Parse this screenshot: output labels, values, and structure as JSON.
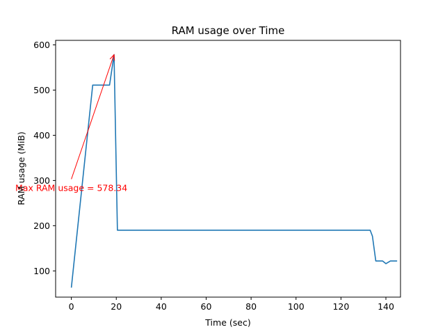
{
  "chart_data": {
    "type": "line",
    "title": "RAM usage over Time",
    "xlabel": "Time (sec)",
    "ylabel": "RAM usage (MiB)",
    "xlim": [
      -7,
      146.5
    ],
    "ylim": [
      42,
      610
    ],
    "xticks": [
      0,
      20,
      40,
      60,
      80,
      100,
      120,
      140
    ],
    "yticks": [
      100,
      200,
      300,
      400,
      500,
      600
    ],
    "grid": false,
    "series": [
      {
        "color": "#1f77b4",
        "x": [
          0,
          9.5,
          17,
          19,
          20.5,
          133,
          134,
          135.5,
          138.5,
          140,
          142,
          145
        ],
        "y": [
          63,
          511,
          511,
          578.34,
          190,
          190,
          177,
          122,
          122,
          116,
          122,
          122
        ]
      }
    ],
    "annotation": {
      "text": "Max RAM usage = 578.34",
      "color": "#ff0000",
      "point": [
        19,
        578.34
      ],
      "text_anchor_point": [
        0,
        303
      ]
    }
  }
}
